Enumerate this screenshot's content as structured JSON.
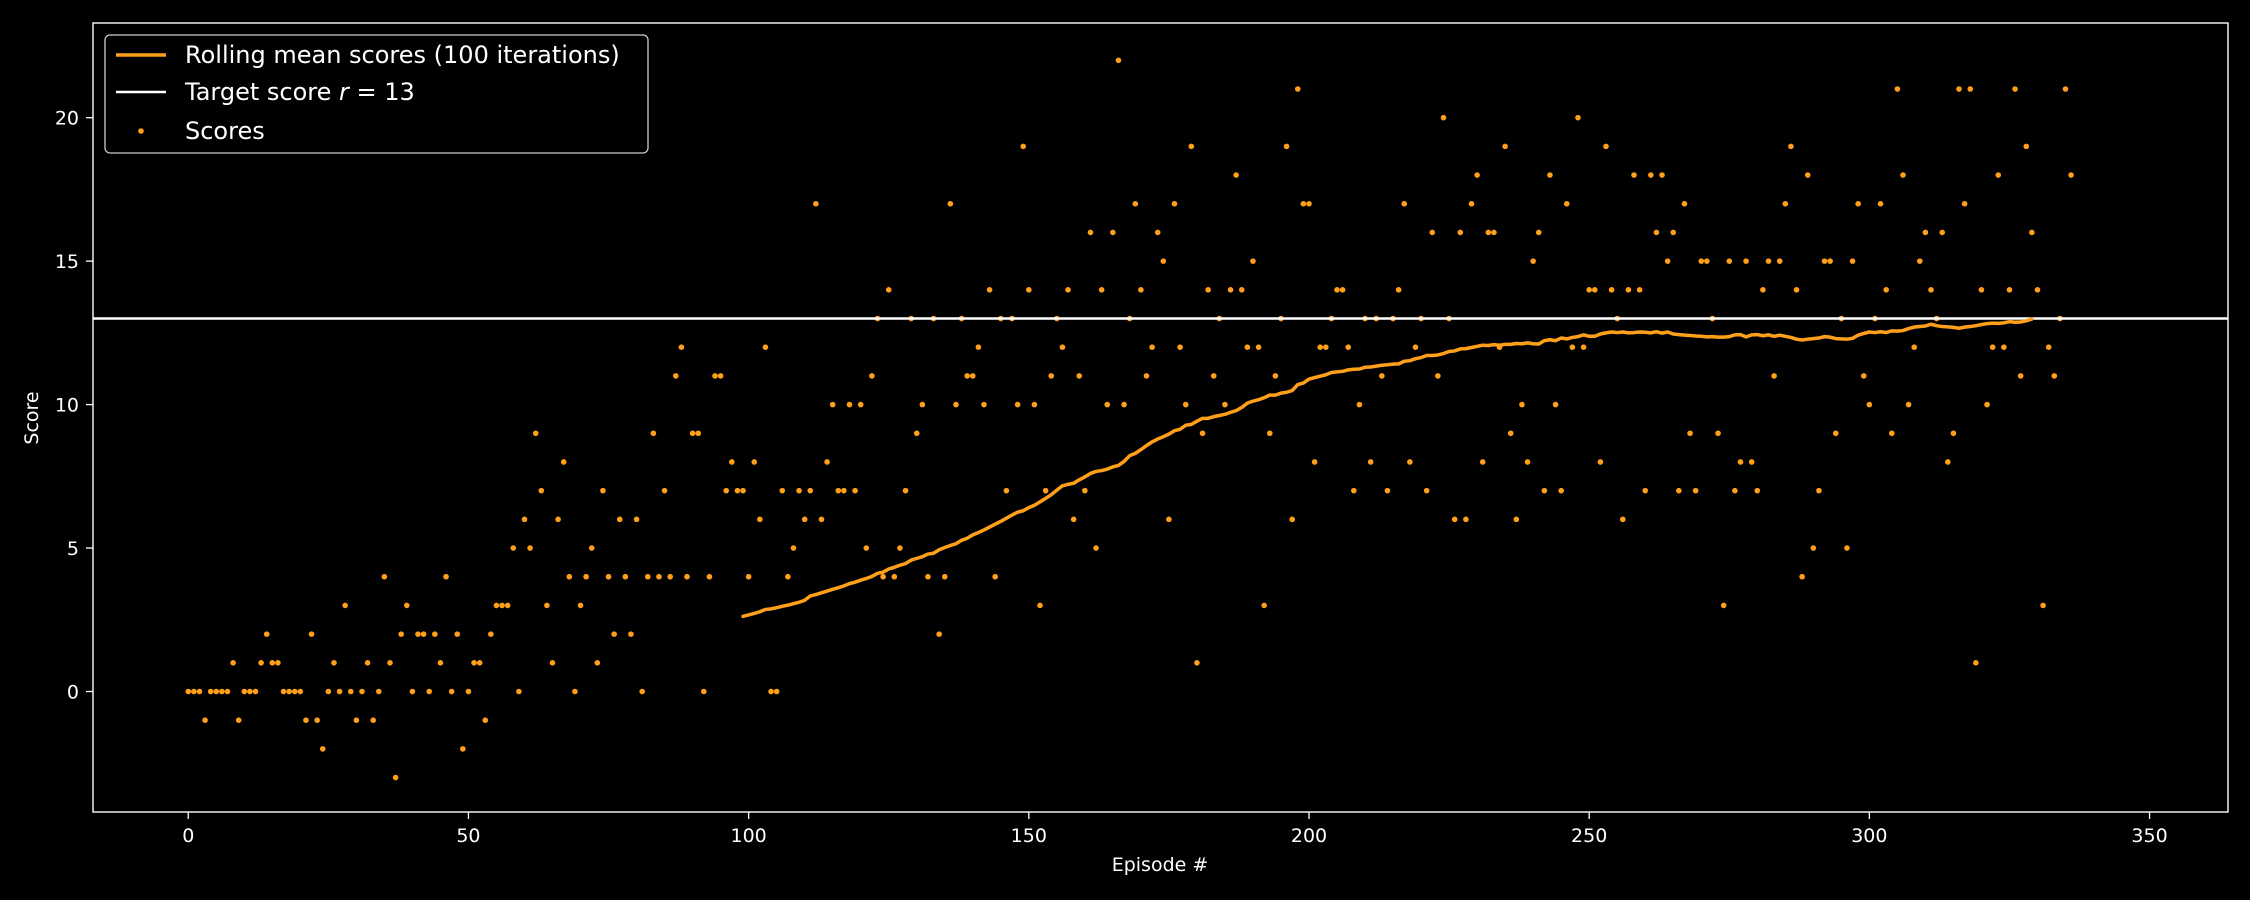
{
  "chart_data": {
    "type": "scatter",
    "xlabel": "Episode #",
    "ylabel": "Score",
    "xlim": [
      -17,
      364
    ],
    "ylim": [
      -4.2,
      23.3
    ],
    "xticks": [
      0,
      50,
      100,
      150,
      200,
      250,
      300,
      350
    ],
    "yticks": [
      0,
      5,
      10,
      15,
      20
    ],
    "background": "#000000",
    "foreground": "#ffffff",
    "legend_position": "top-left",
    "target_score": 13,
    "legend": {
      "rolling": "Rolling mean scores (100 iterations)",
      "target_prefix": "Target score ",
      "target_var": "r",
      "target_suffix": " = 13",
      "scores": "Scores"
    },
    "colors": {
      "scores": "#ff9f1a",
      "rolling": "#ff9f1a",
      "target": "#ffffff"
    },
    "scores": [
      0,
      0,
      0,
      -1,
      0,
      0,
      0,
      0,
      1,
      -1,
      0,
      0,
      0,
      1,
      2,
      1,
      1,
      0,
      0,
      0,
      0,
      -1,
      2,
      -1,
      -2,
      0,
      1,
      0,
      3,
      0,
      -1,
      0,
      1,
      -1,
      0,
      4,
      1,
      -3,
      2,
      3,
      0,
      2,
      2,
      0,
      2,
      1,
      4,
      0,
      2,
      -2,
      0,
      1,
      1,
      -1,
      2,
      3,
      3,
      3,
      5,
      0,
      6,
      5,
      9,
      7,
      3,
      1,
      6,
      8,
      4,
      0,
      3,
      4,
      5,
      1,
      7,
      4,
      2,
      6,
      4,
      2,
      6,
      0,
      4,
      9,
      4,
      7,
      4,
      11,
      12,
      4,
      9,
      9,
      0,
      4,
      11,
      11,
      7,
      8,
      7,
      7,
      4,
      8,
      6,
      12,
      0,
      0,
      7,
      4,
      5,
      7,
      6,
      7,
      17,
      6,
      8,
      10,
      7,
      7,
      10,
      7,
      10,
      5,
      11,
      13,
      4,
      14,
      4,
      5,
      7,
      13,
      9,
      10,
      4,
      13,
      2,
      4,
      17,
      10,
      13,
      11,
      11,
      12,
      10,
      14,
      4,
      13,
      7,
      13,
      10,
      19,
      14,
      10,
      3,
      7,
      11,
      13,
      12,
      14,
      6,
      11,
      7,
      16,
      5,
      14,
      10,
      16,
      22,
      10,
      13,
      17,
      14,
      11,
      12,
      16,
      15,
      6,
      17,
      12,
      10,
      19,
      1,
      9,
      14,
      11,
      13,
      10,
      14,
      18,
      14,
      12,
      15,
      12,
      3,
      9,
      11,
      13,
      19,
      6,
      21,
      17,
      17,
      8,
      12,
      12,
      13,
      14,
      14,
      12,
      7,
      10,
      13,
      8,
      13,
      11,
      7,
      13,
      14,
      17,
      8,
      12,
      13,
      7,
      16,
      11,
      20,
      13,
      6,
      16,
      6,
      17,
      18,
      8,
      16,
      16,
      12,
      19,
      9,
      6,
      10,
      8,
      15,
      16,
      7,
      18,
      10,
      7,
      17,
      12,
      20,
      12,
      14,
      14,
      8,
      19,
      14,
      13,
      6,
      14,
      18,
      14,
      7,
      18,
      16,
      18,
      15,
      16,
      7,
      17,
      9,
      7,
      15,
      15,
      13,
      9,
      3,
      15,
      7,
      8,
      15,
      8,
      7,
      14,
      15,
      11,
      15,
      17,
      19,
      14,
      4,
      18,
      5,
      7,
      15,
      15,
      9,
      13,
      5,
      15,
      17,
      11,
      10,
      13,
      17,
      14,
      9,
      21,
      18,
      10,
      12,
      15,
      16,
      14,
      13,
      16,
      8,
      9,
      21,
      17,
      21,
      1,
      14,
      10,
      12,
      18,
      12,
      14,
      21,
      11,
      19,
      16,
      14,
      3,
      12,
      11,
      13,
      21,
      18
    ],
    "rolling_start": 99,
    "rolling_means": [
      2.62,
      2.67,
      2.72,
      2.78,
      2.86,
      2.88,
      2.92,
      2.97,
      3.01,
      3.06,
      3.11,
      3.18,
      3.33,
      3.38,
      3.44,
      3.5,
      3.56,
      3.62,
      3.68,
      3.76,
      3.81,
      3.88,
      3.94,
      4.01,
      4.12,
      4.16,
      4.27,
      4.33,
      4.4,
      4.46,
      4.58,
      4.64,
      4.7,
      4.79,
      4.82,
      4.94,
      5.02,
      5.09,
      5.15,
      5.27,
      5.34,
      5.46,
      5.54,
      5.63,
      5.73,
      5.83,
      5.93,
      6.04,
      6.15,
      6.25,
      6.3,
      6.41,
      6.49,
      6.61,
      6.73,
      6.86,
      7.02,
      7.17,
      7.22,
      7.26,
      7.38,
      7.48,
      7.6,
      7.67,
      7.7,
      7.75,
      7.83,
      7.88,
      8.02,
      8.22,
      8.3,
      8.43,
      8.57,
      8.7,
      8.8,
      8.88,
      8.97,
      9.09,
      9.14,
      9.28,
      9.31,
      9.42,
      9.52,
      9.52,
      9.58,
      9.62,
      9.66,
      9.73,
      9.79,
      9.9,
      10.05,
      10.12,
      10.17,
      10.24,
      10.33,
      10.33,
      10.4,
      10.43,
      10.49,
      10.7,
      10.75,
      10.89,
      10.94,
      10.99,
      11.04,
      11.12,
      11.14,
      11.16,
      11.21,
      11.23,
      11.24,
      11.3,
      11.31,
      11.34,
      11.37,
      11.39,
      11.41,
      11.42,
      11.51,
      11.53,
      11.6,
      11.64,
      11.71,
      11.71,
      11.73,
      11.78,
      11.85,
      11.87,
      11.94,
      11.95,
      11.99,
      12.03,
      12.07,
      12.06,
      12.09,
      12.07,
      12.1,
      12.1,
      12.13,
      12.12,
      12.15,
      12.12,
      12.11,
      12.23,
      12.26,
      12.23,
      12.32,
      12.29,
      12.34,
      12.37,
      12.43,
      12.38,
      12.38,
      12.46,
      12.5,
      12.53,
      12.51,
      12.53,
      12.5,
      12.51,
      12.53,
      12.52,
      12.5,
      12.54,
      12.49,
      12.53,
      12.46,
      12.44,
      12.42,
      12.41,
      12.39,
      12.38,
      12.36,
      12.37,
      12.35,
      12.35,
      12.37,
      12.43,
      12.44,
      12.36,
      12.43,
      12.44,
      12.4,
      12.43,
      12.38,
      12.42,
      12.38,
      12.34,
      12.28,
      12.25,
      12.28,
      12.3,
      12.32,
      12.37,
      12.35,
      12.3,
      12.29,
      12.28,
      12.31,
      12.42,
      12.48,
      12.53,
      12.51,
      12.54,
      12.51,
      12.57,
      12.56,
      12.58,
      12.65,
      12.7,
      12.72,
      12.74,
      12.8,
      12.75,
      12.72,
      12.71,
      12.69,
      12.66,
      12.7,
      12.72,
      12.75,
      12.79,
      12.82,
      12.84,
      12.83,
      12.85,
      12.89,
      12.87,
      12.88,
      12.92,
      12.98
    ]
  }
}
